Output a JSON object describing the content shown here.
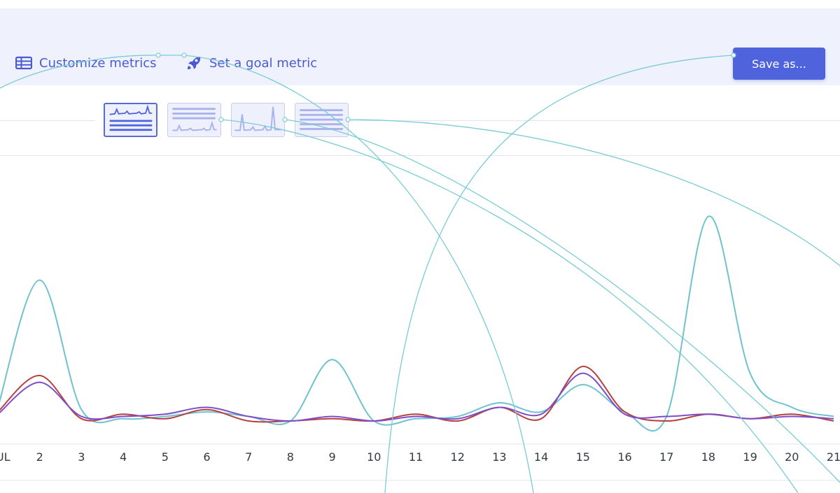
{
  "toolbar": {
    "customize_label": "Customize metrics",
    "goal_label": "Set a goal metric",
    "save_label": "Save as..."
  },
  "viz_options": [
    "line-list",
    "list-line",
    "sparkline",
    "list"
  ],
  "colors": {
    "accent": "#4f63dc",
    "toolbar_bg": "#eff2fd",
    "series_teal": "#6ec3cf",
    "series_red": "#b5423f",
    "series_purple": "#7f4dc8",
    "connector": "#79ccd4"
  },
  "chart_data": {
    "type": "line",
    "x": [
      "JUL",
      "2",
      "3",
      "4",
      "5",
      "6",
      "7",
      "8",
      "9",
      "10",
      "11",
      "12",
      "13",
      "14",
      "15",
      "16",
      "17",
      "18",
      "19",
      "20",
      "21"
    ],
    "ylim": [
      0,
      100
    ],
    "grid": false,
    "series": [
      {
        "color": "#6ec3cf",
        "values": [
          10,
          66,
          9,
          5,
          6,
          8,
          6,
          4,
          31,
          4,
          5,
          6,
          12,
          8,
          20,
          8,
          6,
          94,
          25,
          10,
          6
        ]
      },
      {
        "color": "#b5423f",
        "values": [
          8,
          24,
          5,
          7,
          5,
          9,
          4,
          4,
          5,
          4,
          7,
          4,
          10,
          5,
          28,
          8,
          4,
          7,
          5,
          7,
          4
        ]
      },
      {
        "color": "#7f4dc8",
        "values": [
          7,
          21,
          6,
          6,
          7,
          10,
          6,
          4,
          6,
          4,
          6,
          5,
          10,
          7,
          25,
          7,
          6,
          7,
          5,
          6,
          5
        ]
      }
    ]
  }
}
